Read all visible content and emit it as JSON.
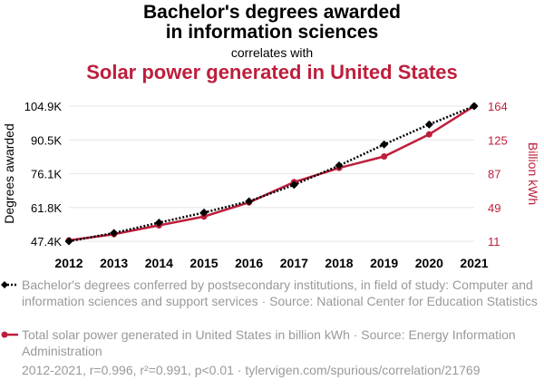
{
  "title_line1": "Bachelor's degrees awarded",
  "title_line2": "in information sciences",
  "correlates_text": "correlates with",
  "title_red": "Solar power generated in United States",
  "colors": {
    "series1": "#000000",
    "series2": "#be1e3c",
    "muted": "#999999"
  },
  "chart_data": {
    "type": "line",
    "x": [
      2012,
      2013,
      2014,
      2015,
      2016,
      2017,
      2018,
      2019,
      2020,
      2021
    ],
    "left_axis": {
      "label": "Degrees awarded",
      "ticks": [
        "104.9K",
        "90.5K",
        "76.1K",
        "61.8K",
        "47.4K"
      ],
      "range": [
        47400,
        104900
      ]
    },
    "right_axis": {
      "label": "Billion kWh",
      "ticks": [
        "164",
        "125",
        "87",
        "49",
        "11"
      ],
      "range": [
        11,
        164
      ]
    },
    "series": [
      {
        "legend": "Bachelor's degrees conferred by postsecondary institutions, in field of study: Computer and information sciences and support services · Source: National Center for Education Statistics",
        "axis": "left",
        "style": "dotted",
        "marker": "diamond",
        "values": [
          47400,
          50900,
          55300,
          59600,
          64400,
          71400,
          79600,
          88600,
          97100,
          104900
        ]
      },
      {
        "legend": "Total solar power generated in United States in billion kWh · Source: Energy Information Administration",
        "axis": "right",
        "style": "solid",
        "marker": "circle",
        "values": [
          12,
          19,
          29,
          39,
          55,
          78,
          94,
          107,
          132,
          164
        ]
      }
    ],
    "grid": true
  },
  "footer": "2012-2021, r=0.996, r²=0.991, p<0.01 · tylervigen.com/spurious/correlation/21769"
}
